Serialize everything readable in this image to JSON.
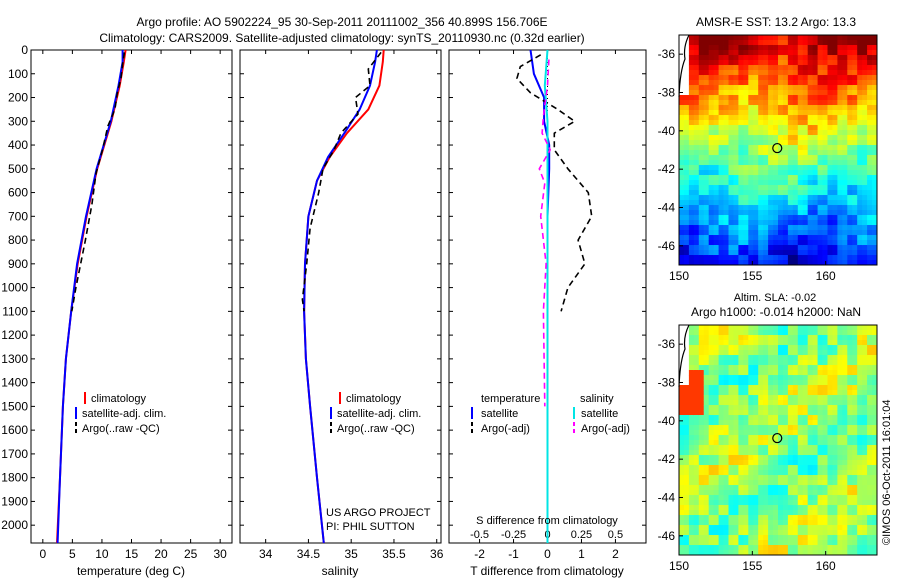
{
  "header": {
    "line1": "Argo profile: AO 5902224_95 30-Sep-2011 20111002_356 40.899S 156.706E",
    "line2": "Climatology: CARS2009. Satellite-adjusted climatology: synTS_20110930.nc (0.32d earlier)"
  },
  "side_label": "©IMOS 06-Oct-2011 16:01:04",
  "colors": {
    "climatology": "#ff0000",
    "satellite": "#0000ff",
    "argo": "#000000",
    "temp_sat": "#0000ff",
    "sal_sat": "#00e5e5",
    "sal_argo": "#ff00ff"
  },
  "chart_data": [
    {
      "type": "line",
      "xlabel": "temperature (deg C)",
      "ylabel": "",
      "xlim": [
        -2,
        32
      ],
      "ylim": [
        2075,
        0
      ],
      "xticks": [
        "0",
        "5",
        "10",
        "15",
        "20",
        "25",
        "30"
      ],
      "yticks": [
        "0",
        "100",
        "200",
        "300",
        "400",
        "500",
        "600",
        "700",
        "800",
        "900",
        "1000",
        "1100",
        "1200",
        "1300",
        "1400",
        "1500",
        "1600",
        "1700",
        "1800",
        "1900",
        "2000"
      ],
      "legend": [
        "climatology",
        "satellite-adj. clim.",
        "Argo(..raw -QC)"
      ],
      "series": [
        {
          "name": "climatology",
          "depth": [
            0,
            50,
            150,
            300,
            500,
            700,
            900,
            1100,
            1300,
            1500,
            1800,
            2075
          ],
          "values": [
            14.0,
            13.7,
            13.0,
            11.6,
            9.2,
            7.4,
            5.9,
            4.8,
            3.9,
            3.4,
            2.9,
            2.4
          ]
        },
        {
          "name": "satellite-adj. clim.",
          "depth": [
            0,
            50,
            150,
            300,
            500,
            700,
            900,
            1100,
            1300,
            1500,
            1800,
            2075
          ],
          "values": [
            13.5,
            13.5,
            12.8,
            11.5,
            9.1,
            7.3,
            5.8,
            4.8,
            3.9,
            3.4,
            2.9,
            2.5
          ]
        },
        {
          "name": "Argo(..raw -QC)",
          "depth": [
            10,
            60,
            120,
            180,
            250,
            320,
            420,
            520,
            650,
            800,
            1000,
            1100
          ],
          "values": [
            13.8,
            13.5,
            13.2,
            12.6,
            12.2,
            11.0,
            10.1,
            9.0,
            8.3,
            7.2,
            5.6,
            4.9
          ]
        }
      ]
    },
    {
      "type": "line",
      "xlabel": "salinity",
      "ylabel": "",
      "xlim": [
        33.7,
        36.05
      ],
      "ylim": [
        2075,
        0
      ],
      "xticks": [
        "34",
        "34.5",
        "35",
        "35.5",
        "36"
      ],
      "legend": [
        "climatology",
        "satellite-adj. clim.",
        "Argo(..raw -QC)"
      ],
      "annotation": [
        "US ARGO PROJECT",
        "PI: PHIL SUTTON"
      ],
      "series": [
        {
          "name": "climatology",
          "depth": [
            0,
            50,
            150,
            250,
            350,
            450,
            550,
            700,
            900,
            1100,
            1300,
            1500,
            1800,
            2075
          ],
          "values": [
            35.38,
            35.37,
            35.33,
            35.2,
            34.95,
            34.75,
            34.6,
            34.5,
            34.46,
            34.45,
            34.47,
            34.52,
            34.6,
            34.68
          ]
        },
        {
          "name": "satellite-adj. clim.",
          "depth": [
            0,
            50,
            150,
            250,
            350,
            450,
            550,
            700,
            900,
            1100,
            1300,
            1500,
            1800,
            2075
          ],
          "values": [
            35.3,
            35.28,
            35.22,
            35.1,
            34.92,
            34.73,
            34.6,
            34.5,
            34.46,
            34.45,
            34.47,
            34.52,
            34.6,
            34.68
          ]
        },
        {
          "name": "Argo(..raw -QC)",
          "depth": [
            10,
            80,
            150,
            200,
            270,
            350,
            420,
            500,
            600,
            750,
            900,
            1050,
            1100
          ],
          "values": [
            35.35,
            35.2,
            35.22,
            35.05,
            35.08,
            34.88,
            34.8,
            34.67,
            34.62,
            34.52,
            34.48,
            34.43,
            34.45
          ]
        }
      ]
    },
    {
      "type": "line",
      "xlabel": "T difference from climatology",
      "xlabel_top": "S difference from climatology",
      "xlim": [
        -2.9,
        2.9
      ],
      "ylim": [
        2075,
        0
      ],
      "xticks": [
        "-2",
        "-1",
        "0",
        "1",
        "2"
      ],
      "xticks_top": [
        "-0.5",
        "-0.25",
        "0",
        "0.25",
        "0.5"
      ],
      "legend_titles": [
        "temperature",
        "salinity"
      ],
      "legend": [
        "satellite",
        "Argo(-adj)",
        "satellite",
        "Argo(-adj)"
      ],
      "series": [
        {
          "name": "satellite",
          "depth": [
            0,
            100,
            200,
            300,
            400,
            500,
            700,
            900,
            1100,
            1300,
            1600,
            2075
          ],
          "values": [
            -0.5,
            -0.4,
            -0.1,
            -0.1,
            0.05,
            0.05,
            0.0,
            0.0,
            0.0,
            0.0,
            0.0,
            0.0
          ]
        },
        {
          "name": "Argo(-adj)",
          "depth": [
            20,
            70,
            120,
            180,
            250,
            300,
            350,
            420,
            500,
            600,
            700,
            800,
            900,
            1000,
            1050,
            1100
          ],
          "values": [
            -0.2,
            -0.8,
            -0.9,
            -0.5,
            0.3,
            0.8,
            0.2,
            0.2,
            0.6,
            1.2,
            1.3,
            0.9,
            1.1,
            0.6,
            0.5,
            0.4
          ]
        },
        {
          "name": "satellite",
          "depth": [
            0,
            150,
            300,
            600,
            1000,
            2075
          ],
          "values": [
            0.0,
            -0.02,
            0.0,
            0.0,
            0.0,
            0.0
          ]
        },
        {
          "name": "Argo(-adj)",
          "depth": [
            40,
            150,
            280,
            350,
            420,
            500,
            560,
            700,
            900,
            1100,
            1500
          ],
          "values": [
            0.01,
            0.0,
            -0.03,
            -0.04,
            0.02,
            -0.06,
            -0.02,
            -0.05,
            -0.01,
            -0.03,
            -0.02
          ]
        }
      ]
    }
  ],
  "maps": [
    {
      "title": "AMSR-E SST: 13.2  Argo: 13.3",
      "xlim": [
        150,
        163.5
      ],
      "ylim": [
        -47,
        -35
      ],
      "xticks": [
        "150",
        "155",
        "160"
      ],
      "yticks": [
        "-36",
        "-38",
        "-40",
        "-42",
        "-44",
        "-46"
      ],
      "marker": {
        "lon": 156.7,
        "lat": -40.9
      }
    },
    {
      "title": "Altim. SLA: -0.02",
      "subtitle": "Argo h1000: -0.014 h2000: NaN",
      "xlim": [
        150,
        163.5
      ],
      "ylim": [
        -47,
        -35
      ],
      "xticks": [
        "150",
        "155",
        "160"
      ],
      "yticks": [
        "-36",
        "-38",
        "-40",
        "-42",
        "-44",
        "-46"
      ],
      "marker": {
        "lon": 156.7,
        "lat": -40.9
      }
    }
  ]
}
